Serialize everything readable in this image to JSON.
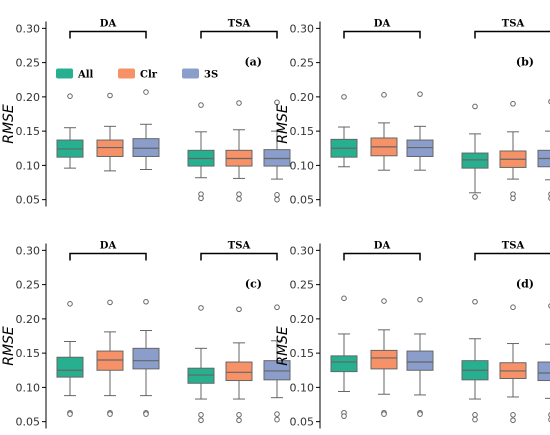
{
  "colors": {
    "All": "#27b08f",
    "Clr": "#f79167",
    "3S": "#8a9dcb",
    "line": "#666666"
  },
  "chart_data": [
    {
      "type": "box",
      "panel_label": "(a)",
      "ylabel": "RMSE",
      "ylim": [
        0.04,
        0.31
      ],
      "yticks": [
        "0.05",
        "0.10",
        "0.15",
        "0.20",
        "0.25",
        "0.30"
      ],
      "groups": [
        "DA",
        "TSA"
      ],
      "legend": [
        {
          "name": "All",
          "color": "#27b08f"
        },
        {
          "name": "Clr",
          "color": "#f79167"
        },
        {
          "name": "3S",
          "color": "#8a9dcb"
        }
      ],
      "boxes": [
        {
          "group": "DA",
          "series": "All",
          "min": 0.096,
          "q1": 0.112,
          "median": 0.124,
          "q3": 0.137,
          "max": 0.155,
          "outliers": [
            0.201
          ]
        },
        {
          "group": "DA",
          "series": "Clr",
          "min": 0.092,
          "q1": 0.113,
          "median": 0.126,
          "q3": 0.137,
          "max": 0.157,
          "outliers": [
            0.202
          ]
        },
        {
          "group": "DA",
          "series": "3S",
          "min": 0.094,
          "q1": 0.113,
          "median": 0.125,
          "q3": 0.139,
          "max": 0.16,
          "outliers": [
            0.207
          ]
        },
        {
          "group": "TSA",
          "series": "All",
          "min": 0.082,
          "q1": 0.099,
          "median": 0.11,
          "q3": 0.122,
          "max": 0.149,
          "outliers": [
            0.188,
            0.058,
            0.052
          ]
        },
        {
          "group": "TSA",
          "series": "Clr",
          "min": 0.081,
          "q1": 0.099,
          "median": 0.11,
          "q3": 0.122,
          "max": 0.152,
          "outliers": [
            0.191,
            0.058,
            0.051
          ]
        },
        {
          "group": "TSA",
          "series": "3S",
          "min": 0.08,
          "q1": 0.099,
          "median": 0.11,
          "q3": 0.123,
          "max": 0.15,
          "outliers": [
            0.192,
            0.057,
            0.05
          ]
        }
      ]
    },
    {
      "type": "box",
      "panel_label": "(b)",
      "ylabel": "RMSE",
      "ylim": [
        0.04,
        0.31
      ],
      "yticks": [
        "0.05",
        "0.10",
        "0.15",
        "0.20",
        "0.25",
        "0.30"
      ],
      "groups": [
        "DA",
        "TSA"
      ],
      "boxes": [
        {
          "group": "DA",
          "series": "All",
          "min": 0.098,
          "q1": 0.112,
          "median": 0.125,
          "q3": 0.138,
          "max": 0.156,
          "outliers": [
            0.2
          ]
        },
        {
          "group": "DA",
          "series": "Clr",
          "min": 0.093,
          "q1": 0.114,
          "median": 0.127,
          "q3": 0.14,
          "max": 0.162,
          "outliers": [
            0.203
          ]
        },
        {
          "group": "DA",
          "series": "3S",
          "min": 0.093,
          "q1": 0.113,
          "median": 0.126,
          "q3": 0.137,
          "max": 0.157,
          "outliers": [
            0.204
          ]
        },
        {
          "group": "TSA",
          "series": "All",
          "min": 0.06,
          "q1": 0.096,
          "median": 0.108,
          "q3": 0.118,
          "max": 0.146,
          "outliers": [
            0.186,
            0.054
          ]
        },
        {
          "group": "TSA",
          "series": "Clr",
          "min": 0.08,
          "q1": 0.097,
          "median": 0.109,
          "q3": 0.121,
          "max": 0.149,
          "outliers": [
            0.19,
            0.058,
            0.052
          ]
        },
        {
          "group": "TSA",
          "series": "3S",
          "min": 0.079,
          "q1": 0.098,
          "median": 0.11,
          "q3": 0.122,
          "max": 0.15,
          "outliers": [
            0.193,
            0.058,
            0.052
          ]
        }
      ]
    },
    {
      "type": "box",
      "panel_label": "(c)",
      "ylabel": "RMSE",
      "ylim": [
        0.04,
        0.31
      ],
      "yticks": [
        "0.05",
        "0.10",
        "0.15",
        "0.20",
        "0.25",
        "0.30"
      ],
      "groups": [
        "DA",
        "TSA"
      ],
      "boxes": [
        {
          "group": "DA",
          "series": "All",
          "min": 0.088,
          "q1": 0.115,
          "median": 0.125,
          "q3": 0.144,
          "max": 0.167,
          "outliers": [
            0.222,
            0.063,
            0.061
          ]
        },
        {
          "group": "DA",
          "series": "Clr",
          "min": 0.088,
          "q1": 0.125,
          "median": 0.14,
          "q3": 0.153,
          "max": 0.181,
          "outliers": [
            0.224,
            0.063,
            0.061
          ]
        },
        {
          "group": "DA",
          "series": "3S",
          "min": 0.088,
          "q1": 0.127,
          "median": 0.139,
          "q3": 0.157,
          "max": 0.183,
          "outliers": [
            0.225,
            0.063,
            0.061
          ]
        },
        {
          "group": "TSA",
          "series": "All",
          "min": 0.083,
          "q1": 0.106,
          "median": 0.118,
          "q3": 0.128,
          "max": 0.157,
          "outliers": [
            0.216,
            0.06,
            0.052
          ]
        },
        {
          "group": "TSA",
          "series": "Clr",
          "min": 0.083,
          "q1": 0.11,
          "median": 0.122,
          "q3": 0.137,
          "max": 0.165,
          "outliers": [
            0.214,
            0.06,
            0.052
          ]
        },
        {
          "group": "TSA",
          "series": "3S",
          "min": 0.085,
          "q1": 0.111,
          "median": 0.124,
          "q3": 0.139,
          "max": 0.168,
          "outliers": [
            0.217,
            0.061,
            0.053
          ]
        }
      ]
    },
    {
      "type": "box",
      "panel_label": "(d)",
      "ylabel": "RMSE",
      "ylim": [
        0.04,
        0.31
      ],
      "yticks": [
        "0.05",
        "0.10",
        "0.15",
        "0.20",
        "0.25",
        "0.30"
      ],
      "groups": [
        "DA",
        "TSA"
      ],
      "boxes": [
        {
          "group": "DA",
          "series": "All",
          "min": 0.094,
          "q1": 0.123,
          "median": 0.137,
          "q3": 0.146,
          "max": 0.178,
          "outliers": [
            0.23,
            0.063,
            0.058
          ]
        },
        {
          "group": "DA",
          "series": "Clr",
          "min": 0.09,
          "q1": 0.127,
          "median": 0.143,
          "q3": 0.154,
          "max": 0.184,
          "outliers": [
            0.226,
            0.063,
            0.061
          ]
        },
        {
          "group": "DA",
          "series": "3S",
          "min": 0.089,
          "q1": 0.125,
          "median": 0.137,
          "q3": 0.153,
          "max": 0.178,
          "outliers": [
            0.228,
            0.063,
            0.061
          ]
        },
        {
          "group": "TSA",
          "series": "All",
          "min": 0.083,
          "q1": 0.111,
          "median": 0.125,
          "q3": 0.139,
          "max": 0.171,
          "outliers": [
            0.225,
            0.06,
            0.053
          ]
        },
        {
          "group": "TSA",
          "series": "Clr",
          "min": 0.086,
          "q1": 0.113,
          "median": 0.124,
          "q3": 0.136,
          "max": 0.164,
          "outliers": [
            0.217,
            0.06,
            0.052
          ]
        },
        {
          "group": "TSA",
          "series": "3S",
          "min": 0.084,
          "q1": 0.11,
          "median": 0.121,
          "q3": 0.137,
          "max": 0.163,
          "outliers": [
            0.219,
            0.06,
            0.053
          ]
        }
      ]
    }
  ]
}
